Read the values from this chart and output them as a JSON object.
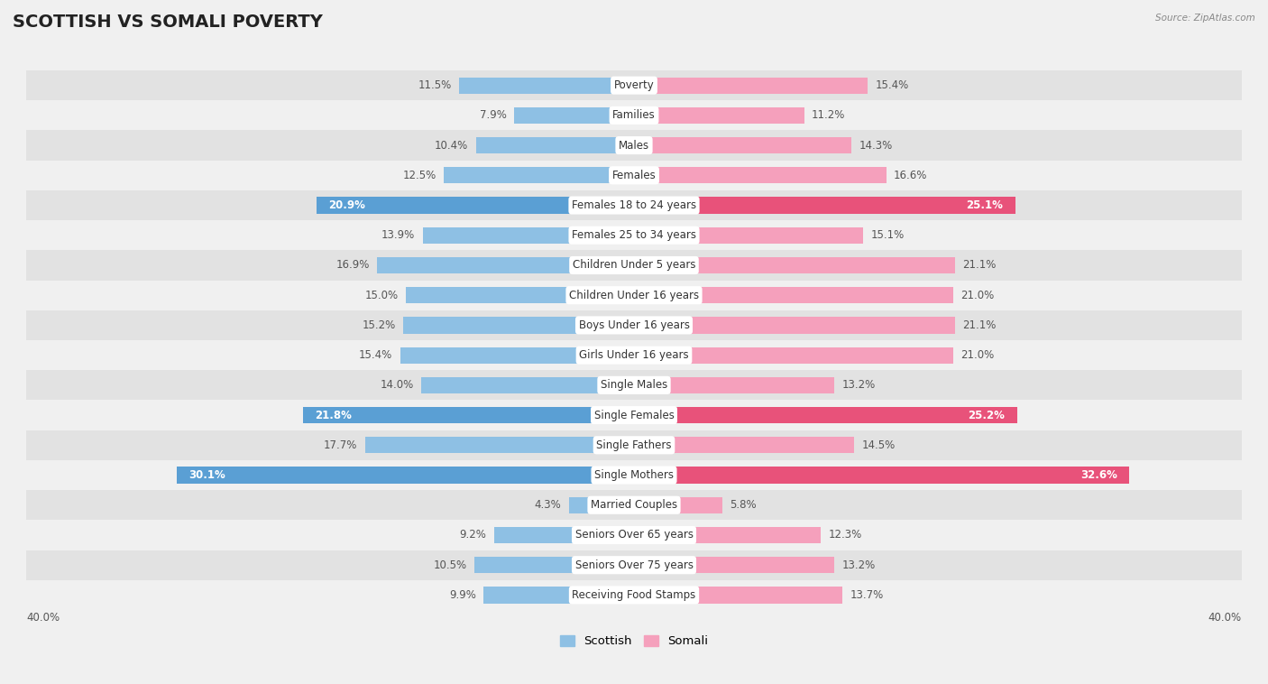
{
  "title": "SCOTTISH VS SOMALI POVERTY",
  "source": "Source: ZipAtlas.com",
  "categories": [
    "Poverty",
    "Families",
    "Males",
    "Females",
    "Females 18 to 24 years",
    "Females 25 to 34 years",
    "Children Under 5 years",
    "Children Under 16 years",
    "Boys Under 16 years",
    "Girls Under 16 years",
    "Single Males",
    "Single Females",
    "Single Fathers",
    "Single Mothers",
    "Married Couples",
    "Seniors Over 65 years",
    "Seniors Over 75 years",
    "Receiving Food Stamps"
  ],
  "scottish": [
    11.5,
    7.9,
    10.4,
    12.5,
    20.9,
    13.9,
    16.9,
    15.0,
    15.2,
    15.4,
    14.0,
    21.8,
    17.7,
    30.1,
    4.3,
    9.2,
    10.5,
    9.9
  ],
  "somali": [
    15.4,
    11.2,
    14.3,
    16.6,
    25.1,
    15.1,
    21.1,
    21.0,
    21.1,
    21.0,
    13.2,
    25.2,
    14.5,
    32.6,
    5.8,
    12.3,
    13.2,
    13.7
  ],
  "scottish_color": "#8ec0e4",
  "somali_color": "#f5a0bc",
  "scottish_highlight_color": "#5a9fd4",
  "somali_highlight_color": "#e8527a",
  "highlight_rows": [
    4,
    11,
    13
  ],
  "axis_max": 40.0,
  "bar_height": 0.55,
  "bg_color": "#f0f0f0",
  "row_bg_dark": "#e2e2e2",
  "row_bg_light": "#f0f0f0",
  "title_fontsize": 14,
  "label_fontsize": 8.5,
  "value_fontsize": 8.5
}
